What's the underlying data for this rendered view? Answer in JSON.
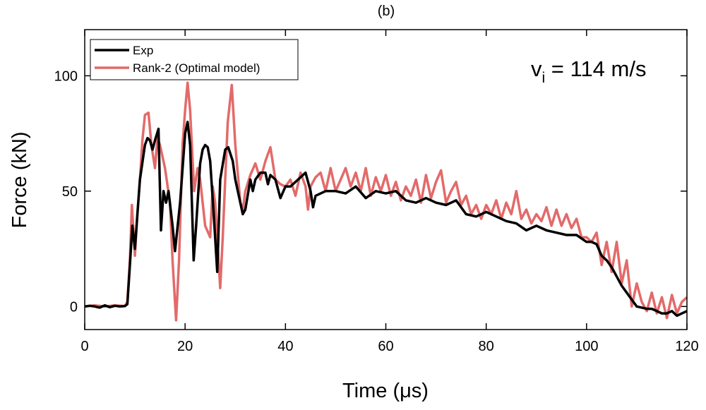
{
  "chart_data": {
    "type": "line",
    "title": "(b)",
    "xlabel": "Time (μs)",
    "ylabel": "Force (kN)",
    "annotation": {
      "main": "v",
      "sub": "i",
      "rest": " = 114 m/s"
    },
    "xlim": [
      0,
      120
    ],
    "ylim": [
      -10,
      120
    ],
    "xticks": [
      0,
      20,
      40,
      60,
      80,
      100,
      120
    ],
    "yticks": [
      0,
      50,
      100
    ],
    "legend": "upper left",
    "series": [
      {
        "name": "Exp",
        "color": "#000000",
        "x": [
          0,
          1,
          2,
          3,
          4,
          5,
          6,
          7,
          8,
          8.5,
          9,
          9.5,
          10,
          10.5,
          11,
          12,
          12.5,
          13,
          13.5,
          14,
          14.7,
          15.2,
          15.7,
          16.2,
          16.7,
          17.5,
          18,
          19,
          20,
          20.5,
          21,
          21.7,
          22.2,
          23,
          23.5,
          24,
          24.5,
          25,
          25.7,
          26.4,
          27,
          28,
          28.6,
          29.5,
          30,
          31,
          31.5,
          32,
          33,
          33.5,
          34,
          35,
          36,
          36.5,
          37,
          38,
          39,
          40,
          41,
          42,
          43,
          44,
          45,
          45.5,
          46,
          48,
          50,
          52,
          54,
          56,
          58,
          60,
          62,
          64,
          66,
          68,
          70,
          72,
          74,
          76,
          78,
          80,
          82,
          84,
          86,
          88,
          90,
          92,
          94,
          96,
          98,
          100,
          101,
          102,
          103,
          104,
          105,
          106,
          107,
          108,
          109,
          110,
          111,
          112,
          113,
          114,
          115,
          116,
          117,
          118,
          119,
          120
        ],
        "values": [
          0,
          0.3,
          0,
          -0.5,
          0.5,
          -0.3,
          0.3,
          0,
          0.2,
          1,
          18,
          35,
          25,
          40,
          55,
          70,
          73,
          72,
          68,
          72,
          77,
          33,
          50,
          45,
          50,
          35,
          24,
          45,
          75,
          80,
          70,
          20,
          35,
          62,
          68,
          70,
          69,
          63,
          40,
          15,
          55,
          68,
          69,
          63,
          55,
          45,
          40,
          42,
          55,
          50,
          55,
          58,
          58,
          53,
          57,
          55,
          47,
          52,
          52,
          54,
          56,
          58,
          50,
          43,
          48,
          50,
          50,
          49,
          52,
          47,
          50,
          49,
          50,
          46,
          45,
          47,
          45,
          44,
          46,
          40,
          39,
          41,
          39,
          37,
          36,
          33,
          35,
          33,
          32,
          31,
          31,
          28,
          28,
          27,
          22,
          20,
          17,
          13,
          9,
          6,
          3,
          0,
          -0.5,
          -1,
          -1,
          -2,
          -3,
          -3,
          -2,
          -4,
          -3,
          -2
        ]
      },
      {
        "name": "Rank-2 (Optimal model)",
        "color": "#e36a6a",
        "x": [
          0,
          2,
          4,
          6,
          8,
          8.5,
          9,
          9.4,
          10,
          10.5,
          11,
          11.5,
          12,
          12.7,
          13.3,
          14,
          14.5,
          15,
          16,
          17,
          17.5,
          18.2,
          18.8,
          19.5,
          20,
          20.5,
          21,
          21.8,
          22.5,
          23,
          24,
          25,
          25.5,
          26,
          27,
          27.5,
          28,
          28.5,
          29.3,
          30,
          31,
          31.5,
          32,
          33,
          34,
          35,
          36,
          37,
          38,
          39,
          40,
          41,
          42,
          43,
          44,
          44.5,
          45,
          46,
          47,
          48,
          49,
          50,
          51,
          52,
          53,
          54,
          55,
          56,
          57,
          58,
          59,
          60,
          61,
          62,
          63,
          64,
          65,
          66,
          67,
          68,
          69,
          70,
          71,
          72,
          73,
          74,
          75,
          76,
          77,
          78,
          79,
          80,
          81,
          82,
          83,
          84,
          85,
          86,
          87,
          88,
          89,
          90,
          91,
          92,
          93,
          94,
          95,
          96,
          97,
          98,
          99,
          100,
          101,
          102,
          103,
          104,
          105,
          106,
          107,
          108,
          109,
          110,
          111,
          112,
          113,
          114,
          115,
          116,
          117,
          118,
          119,
          120
        ],
        "values": [
          0,
          0.5,
          0,
          0.5,
          0.2,
          2,
          20,
          44,
          22,
          40,
          55,
          72,
          83,
          84,
          70,
          60,
          73,
          70,
          60,
          45,
          20,
          -6,
          20,
          70,
          85,
          97,
          85,
          50,
          60,
          55,
          35,
          30,
          52,
          45,
          8,
          30,
          55,
          80,
          96,
          70,
          45,
          42,
          50,
          57,
          62,
          55,
          63,
          69,
          55,
          53,
          52,
          55,
          48,
          58,
          52,
          42,
          52,
          56,
          58,
          50,
          60,
          50,
          55,
          60,
          52,
          58,
          50,
          60,
          48,
          56,
          50,
          57,
          48,
          54,
          46,
          52,
          48,
          55,
          45,
          57,
          47,
          54,
          59,
          45,
          50,
          54,
          44,
          48,
          40,
          44,
          38,
          44,
          40,
          46,
          38,
          45,
          40,
          50,
          38,
          42,
          36,
          40,
          37,
          43,
          35,
          42,
          35,
          40,
          34,
          38,
          30,
          30,
          28,
          32,
          18,
          28,
          15,
          28,
          10,
          20,
          0,
          10,
          2,
          -2,
          6,
          -3,
          4,
          -5,
          5,
          -3,
          2,
          4
        ]
      }
    ]
  }
}
